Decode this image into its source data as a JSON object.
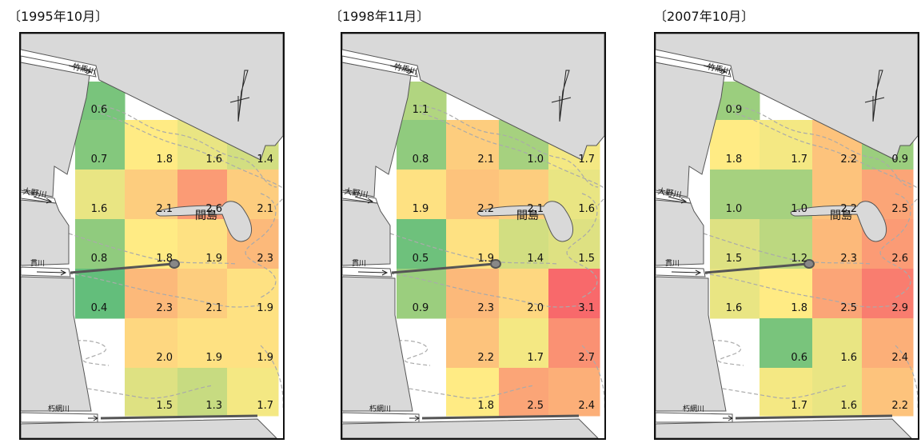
{
  "labels": {
    "island": "間島",
    "river_takema": "竹馬川",
    "river_ono": "大野川",
    "river_nuki": "貫川",
    "river_kutsuami": "朽網川"
  },
  "colors": {
    "land": "#d9d9d9",
    "outline": "#555555",
    "dashed": "#aaaaaa",
    "pipe": "#555555",
    "scale_low": "#63be7b",
    "scale_mid": "#ffeb84",
    "scale_high": "#f8696b"
  },
  "scale": {
    "min": 0.4,
    "mid": 1.8,
    "max": 3.1
  },
  "panels": [
    {
      "title": "〔1995年10月〕",
      "cells": [
        {
          "row": 0,
          "col": 0,
          "value": "0.6"
        },
        {
          "row": 1,
          "col": 0,
          "value": "0.7"
        },
        {
          "row": 1,
          "col": 1,
          "value": "1.8"
        },
        {
          "row": 1,
          "col": 2,
          "value": "1.6"
        },
        {
          "row": 1,
          "col": 3,
          "value": "1.4"
        },
        {
          "row": 2,
          "col": 0,
          "value": "1.6"
        },
        {
          "row": 2,
          "col": 1,
          "value": "2.1"
        },
        {
          "row": 2,
          "col": 2,
          "value": "2.6"
        },
        {
          "row": 2,
          "col": 3,
          "value": "2.1"
        },
        {
          "row": 3,
          "col": 0,
          "value": "0.8"
        },
        {
          "row": 3,
          "col": 1,
          "value": "1.8"
        },
        {
          "row": 3,
          "col": 2,
          "value": "1.9"
        },
        {
          "row": 3,
          "col": 3,
          "value": "2.3"
        },
        {
          "row": 4,
          "col": 0,
          "value": "0.4"
        },
        {
          "row": 4,
          "col": 1,
          "value": "2.3"
        },
        {
          "row": 4,
          "col": 2,
          "value": "2.1"
        },
        {
          "row": 4,
          "col": 3,
          "value": "1.9"
        },
        {
          "row": 5,
          "col": 1,
          "value": "2.0"
        },
        {
          "row": 5,
          "col": 2,
          "value": "1.9"
        },
        {
          "row": 5,
          "col": 3,
          "value": "1.9"
        },
        {
          "row": 6,
          "col": 1,
          "value": "1.5"
        },
        {
          "row": 6,
          "col": 2,
          "value": "1.3"
        },
        {
          "row": 6,
          "col": 3,
          "value": "1.7"
        }
      ]
    },
    {
      "title": "〔1998年11月〕",
      "cells": [
        {
          "row": 0,
          "col": 0,
          "value": "1.1"
        },
        {
          "row": 1,
          "col": 0,
          "value": "0.8"
        },
        {
          "row": 1,
          "col": 1,
          "value": "2.1"
        },
        {
          "row": 1,
          "col": 2,
          "value": "1.0"
        },
        {
          "row": 1,
          "col": 3,
          "value": "1.7"
        },
        {
          "row": 2,
          "col": 0,
          "value": "1.9"
        },
        {
          "row": 2,
          "col": 1,
          "value": "2.2"
        },
        {
          "row": 2,
          "col": 2,
          "value": "2.1"
        },
        {
          "row": 2,
          "col": 3,
          "value": "1.6"
        },
        {
          "row": 3,
          "col": 0,
          "value": "0.5"
        },
        {
          "row": 3,
          "col": 1,
          "value": "1.9"
        },
        {
          "row": 3,
          "col": 2,
          "value": "1.4"
        },
        {
          "row": 3,
          "col": 3,
          "value": "1.5"
        },
        {
          "row": 4,
          "col": 0,
          "value": "0.9"
        },
        {
          "row": 4,
          "col": 1,
          "value": "2.3"
        },
        {
          "row": 4,
          "col": 2,
          "value": "2.0"
        },
        {
          "row": 4,
          "col": 3,
          "value": "3.1"
        },
        {
          "row": 5,
          "col": 1,
          "value": "2.2"
        },
        {
          "row": 5,
          "col": 2,
          "value": "1.7"
        },
        {
          "row": 5,
          "col": 3,
          "value": "2.7"
        },
        {
          "row": 6,
          "col": 1,
          "value": "1.8"
        },
        {
          "row": 6,
          "col": 2,
          "value": "2.5"
        },
        {
          "row": 6,
          "col": 3,
          "value": "2.4"
        }
      ]
    },
    {
      "title": "〔2007年10月〕",
      "cells": [
        {
          "row": 0,
          "col": 0,
          "value": "0.9"
        },
        {
          "row": 1,
          "col": 0,
          "value": "1.8"
        },
        {
          "row": 1,
          "col": 1,
          "value": "1.7"
        },
        {
          "row": 1,
          "col": 2,
          "value": "2.2"
        },
        {
          "row": 1,
          "col": 3,
          "value": "0.9"
        },
        {
          "row": 2,
          "col": 0,
          "value": "1.0"
        },
        {
          "row": 2,
          "col": 1,
          "value": "1.0"
        },
        {
          "row": 2,
          "col": 2,
          "value": "2.2"
        },
        {
          "row": 2,
          "col": 3,
          "value": "2.5"
        },
        {
          "row": 3,
          "col": 0,
          "value": "1.5"
        },
        {
          "row": 3,
          "col": 1,
          "value": "1.2"
        },
        {
          "row": 3,
          "col": 2,
          "value": "2.3"
        },
        {
          "row": 3,
          "col": 3,
          "value": "2.6"
        },
        {
          "row": 4,
          "col": 0,
          "value": "1.6"
        },
        {
          "row": 4,
          "col": 1,
          "value": "1.8"
        },
        {
          "row": 4,
          "col": 2,
          "value": "2.5"
        },
        {
          "row": 4,
          "col": 3,
          "value": "2.9"
        },
        {
          "row": 5,
          "col": 1,
          "value": "0.6"
        },
        {
          "row": 5,
          "col": 2,
          "value": "1.6"
        },
        {
          "row": 5,
          "col": 3,
          "value": "2.4"
        },
        {
          "row": 6,
          "col": 1,
          "value": "1.7"
        },
        {
          "row": 6,
          "col": 2,
          "value": "1.6"
        },
        {
          "row": 6,
          "col": 3,
          "value": "2.2"
        }
      ]
    }
  ]
}
